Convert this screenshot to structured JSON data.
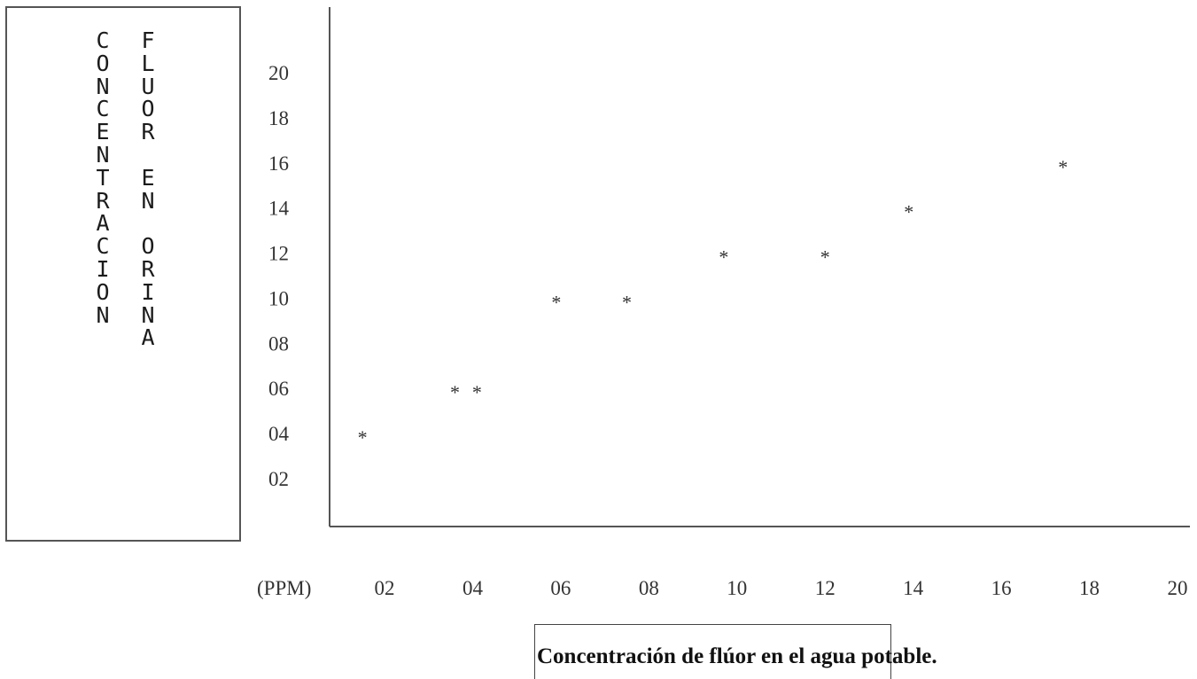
{
  "chart_data": {
    "type": "scatter",
    "title": "",
    "ylabel_columns": [
      [
        "C",
        "O",
        "N",
        "C",
        "E",
        "N",
        "T",
        "R",
        "A",
        "C",
        "I",
        "O",
        "N"
      ],
      [
        "F",
        "L",
        "U",
        "O",
        "R",
        "",
        "E",
        "N",
        "",
        "O",
        "R",
        "I",
        "N",
        "A"
      ]
    ],
    "xlabel": "Concentración de flúor en el agua potable.",
    "x_unit_label": "(PPM)",
    "x_ticks": [
      "02",
      "04",
      "06",
      "08",
      "10",
      "12",
      "14",
      "16",
      "18",
      "20"
    ],
    "y_ticks": [
      "20",
      "18",
      "16",
      "14",
      "12",
      "10",
      "08",
      "06",
      "04",
      "02"
    ],
    "xlim": [
      0,
      20
    ],
    "ylim": [
      0,
      22
    ],
    "marker": "*",
    "points": [
      {
        "x": 1.5,
        "y": 4
      },
      {
        "x": 3.6,
        "y": 6
      },
      {
        "x": 4.1,
        "y": 6
      },
      {
        "x": 5.9,
        "y": 10
      },
      {
        "x": 7.5,
        "y": 10
      },
      {
        "x": 9.7,
        "y": 12
      },
      {
        "x": 12.0,
        "y": 12
      },
      {
        "x": 13.9,
        "y": 14
      },
      {
        "x": 17.4,
        "y": 16
      }
    ]
  }
}
